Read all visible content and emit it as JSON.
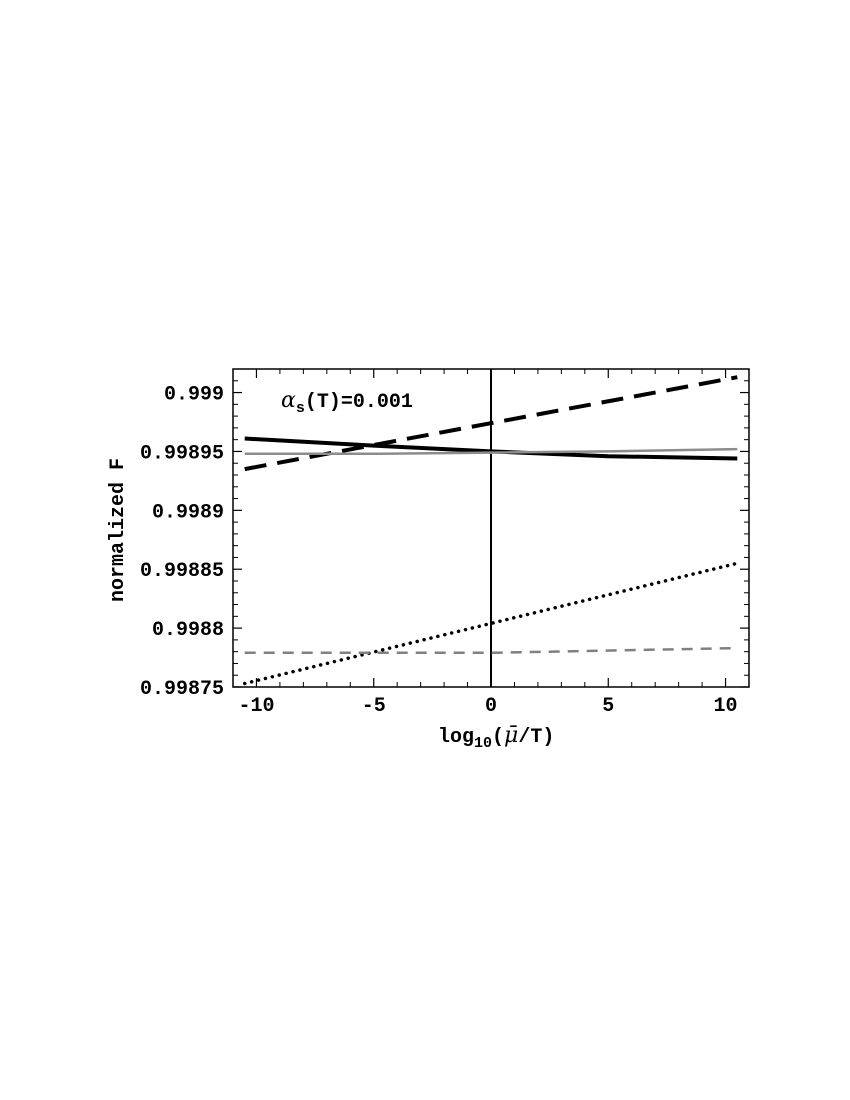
{
  "chart_data": {
    "type": "line",
    "xlabel_parts": {
      "prefix": "log",
      "subscript": "10",
      "open": "(",
      "mu": "μ̄",
      "rest": "/T)"
    },
    "ylabel": "normalized F",
    "annotation": {
      "alpha": "α",
      "subscript": "s",
      "text": "(T)=0.001"
    },
    "xlim": [
      -11,
      11
    ],
    "ylim": [
      0.99875,
      0.99902
    ],
    "x_ticks": [
      -10,
      -5,
      0,
      5,
      10
    ],
    "x_tick_labels": [
      "-10",
      "-5",
      "0",
      "5",
      "10"
    ],
    "y_ticks": [
      0.99875,
      0.9988,
      0.99885,
      0.9989,
      0.99895,
      0.999
    ],
    "y_tick_labels": [
      "0.99875",
      "0.9988",
      "0.99885",
      "0.9989",
      "0.99895",
      "0.999"
    ],
    "vertical_line_x": 0,
    "series": [
      {
        "style": "thick-solid-black",
        "x": [
          -10.5,
          -5,
          0,
          5,
          10.5
        ],
        "y": [
          0.998961,
          0.998955,
          0.99895,
          0.998946,
          0.998944
        ]
      },
      {
        "style": "thick-dashed-black",
        "x": [
          -10.5,
          10.5
        ],
        "y": [
          0.998935,
          0.999013
        ]
      },
      {
        "style": "solid-gray",
        "x": [
          -10.5,
          -5,
          0,
          5,
          10.5
        ],
        "y": [
          0.998948,
          0.998948,
          0.998949,
          0.99895,
          0.998952
        ]
      },
      {
        "style": "dotted-black",
        "x": [
          -10.5,
          10.5
        ],
        "y": [
          0.998753,
          0.998855
        ]
      },
      {
        "style": "dashed-gray",
        "x": [
          -10.5,
          0,
          10.5
        ],
        "y": [
          0.998779,
          0.998779,
          0.998783
        ]
      }
    ]
  }
}
